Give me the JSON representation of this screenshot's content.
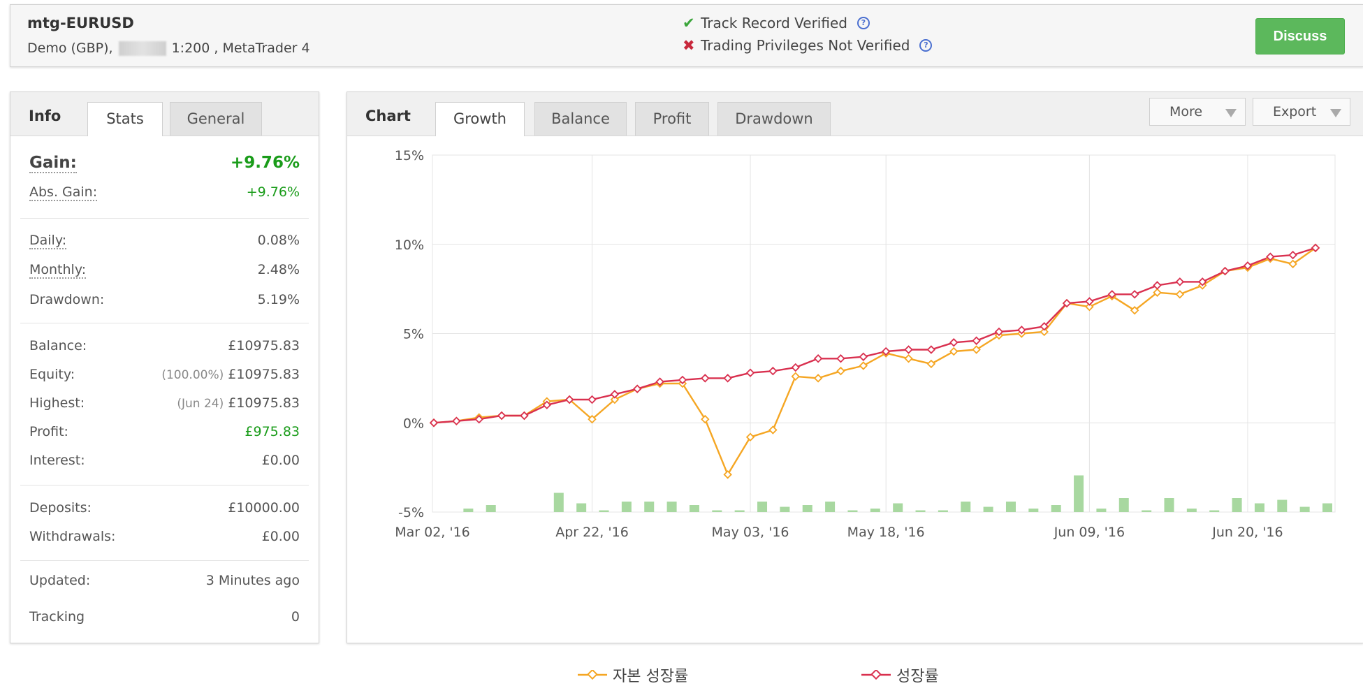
{
  "header": {
    "account_name": "mtg-EURUSD",
    "account_type": "Demo (GBP),",
    "leverage": "1:200",
    "platform": ", MetaTrader 4",
    "track_record": "Track Record Verified",
    "trading_privileges": "Trading Privileges Not Verified",
    "discuss_label": "Discuss"
  },
  "info": {
    "title": "Info",
    "tabs": [
      "Stats",
      "General"
    ],
    "gain_label": "Gain:",
    "gain_value": "+9.76%",
    "abs_gain_label": "Abs. Gain:",
    "abs_gain_value": "+9.76%",
    "daily_label": "Daily:",
    "daily_value": "0.08%",
    "monthly_label": "Monthly:",
    "monthly_value": "2.48%",
    "drawdown_label": "Drawdown:",
    "drawdown_value": "5.19%",
    "balance_label": "Balance:",
    "balance_value": "£10975.83",
    "equity_label": "Equity:",
    "equity_pct": "(100.00%)",
    "equity_value": "£10975.83",
    "highest_label": "Highest:",
    "highest_date": "(Jun 24)",
    "highest_value": "£10975.83",
    "profit_label": "Profit:",
    "profit_value": "£975.83",
    "interest_label": "Interest:",
    "interest_value": "£0.00",
    "deposits_label": "Deposits:",
    "deposits_value": "£10000.00",
    "withdrawals_label": "Withdrawals:",
    "withdrawals_value": "£0.00",
    "updated_label": "Updated:",
    "updated_value": "3 Minutes ago",
    "tracking_label": "Tracking",
    "tracking_value": "0"
  },
  "chart_panel": {
    "title": "Chart",
    "tabs": [
      "Growth",
      "Balance",
      "Profit",
      "Drawdown"
    ],
    "more_label": "More",
    "export_label": "Export"
  },
  "colors": {
    "equity_growth": "#f5a623",
    "growth": "#d9304f",
    "bars": "#a8d8a0",
    "positive": "#1a9c1a",
    "discuss_button": "#5cb85c"
  },
  "chart_data": {
    "type": "line",
    "y_ticks": [
      "15%",
      "10%",
      "5%",
      "0%",
      "-5%"
    ],
    "ylim": [
      -5,
      15
    ],
    "x_ticks": [
      "Mar 02, '16",
      "Apr 22, '16",
      "May 03, '16",
      "May 18, '16",
      "Jun 09, '16",
      "Jun 20, '16"
    ],
    "grid": true,
    "legend_position": "bottom",
    "series": [
      {
        "name": "자본 성장률",
        "values": [
          0,
          0.1,
          0.3,
          0.4,
          0.4,
          1.2,
          1.3,
          0.2,
          1.3,
          1.9,
          2.2,
          2.2,
          0.2,
          -2.9,
          -0.8,
          -0.4,
          2.6,
          2.5,
          2.9,
          3.2,
          3.9,
          3.6,
          3.3,
          4.0,
          4.1,
          4.9,
          5.0,
          5.1,
          6.7,
          6.5,
          7.1,
          6.3,
          7.3,
          7.2,
          7.7,
          8.5,
          8.7,
          9.2,
          8.9,
          9.8
        ]
      },
      {
        "name": "성장률",
        "values": [
          0,
          0.1,
          0.2,
          0.4,
          0.4,
          1.0,
          1.3,
          1.3,
          1.6,
          1.9,
          2.3,
          2.4,
          2.5,
          2.5,
          2.8,
          2.9,
          3.1,
          3.6,
          3.6,
          3.7,
          4.0,
          4.1,
          4.1,
          4.5,
          4.6,
          5.1,
          5.2,
          5.4,
          6.7,
          6.8,
          7.2,
          7.2,
          7.7,
          7.9,
          7.9,
          8.5,
          8.8,
          9.3,
          9.4,
          9.8
        ]
      }
    ],
    "bar_values": [
      0,
      0.2,
      0.4,
      0,
      0,
      1.1,
      0.5,
      0.1,
      0.6,
      0.6,
      0.6,
      0.4,
      0.1,
      0.1,
      0.6,
      0.3,
      0.4,
      0.6,
      0.1,
      0.2,
      0.5,
      0.1,
      0.1,
      0.6,
      0.3,
      0.6,
      0.2,
      0.4,
      2.1,
      0.2,
      0.8,
      0.1,
      0.8,
      0.2,
      0.1,
      0.8,
      0.5,
      0.7,
      0.3,
      0.5
    ]
  }
}
